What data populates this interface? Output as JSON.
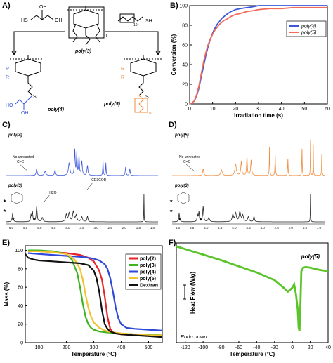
{
  "panels": {
    "A": {
      "label": "A)",
      "center_label": "poly(3)",
      "left_label": "poly(4)",
      "right_label": "poly(5)",
      "thiol_left_text": "HS",
      "thiol_right_text": "SH",
      "ho_left": "HO",
      "oh_left": "OH",
      "sub_n": "n",
      "sub_10": "10",
      "r_label": "R",
      "o_label": "O",
      "s_label": "S",
      "colors": {
        "left": "#3d57d9",
        "right": "#f08c3c",
        "black": "#000000"
      }
    },
    "B": {
      "label": "B)",
      "chart_data": {
        "type": "line",
        "xlabel": "Irradiation time (s)",
        "ylabel": "Conversion (%)",
        "xlim": [
          0,
          60
        ],
        "ylim": [
          0,
          100
        ],
        "xticks": [
          "0",
          "10",
          "20",
          "30",
          "40",
          "50",
          "60"
        ],
        "yticks": [
          "0",
          "20",
          "40",
          "60",
          "80",
          "100"
        ],
        "legend_position": "top-right",
        "series": [
          {
            "name": "poly(4)",
            "color": "#3d57d9",
            "x": [
              0,
              1,
              2,
              3,
              4,
              5,
              6,
              7,
              8,
              9,
              10,
              11,
              12,
              13,
              14,
              15,
              16,
              18,
              20,
              22,
              25,
              28,
              30,
              35,
              40,
              45,
              50,
              55,
              60
            ],
            "y": [
              0,
              1,
              3,
              8,
              16,
              27,
              38,
              49,
              58,
              66,
              72,
              77,
              81,
              84,
              87,
              89,
              91,
              94,
              96,
              97,
              98,
              99,
              100,
              100,
              100,
              100,
              100,
              100,
              100
            ]
          },
          {
            "name": "poly(5)",
            "color": "#f06b5a",
            "x": [
              0,
              1,
              2,
              3,
              4,
              5,
              6,
              7,
              8,
              9,
              10,
              11,
              12,
              13,
              14,
              15,
              16,
              18,
              20,
              22,
              25,
              28,
              30,
              35,
              40,
              45,
              50,
              55,
              60
            ],
            "y": [
              0,
              1,
              3,
              9,
              18,
              30,
              42,
              52,
              60,
              66,
              71,
              75,
              78,
              81,
              83,
              85,
              86,
              89,
              91,
              92,
              94,
              95,
              96,
              97,
              97,
              98,
              98,
              98,
              98
            ]
          }
        ]
      }
    },
    "C": {
      "label": "C)",
      "top_label": "poly(4)",
      "bottom_label": "poly(3)",
      "note_line1": "No unreacted",
      "note_line2": "C=C",
      "peak_h2o": "H2O",
      "peak_cd3cod": "CD3COD",
      "xticks": [
        "6.0",
        "5.5",
        "5.0",
        "4.5",
        "4.0",
        "3.5",
        "3.0",
        "2.5",
        "2.0",
        "1.5",
        "1.0"
      ],
      "colors": {
        "top": "#3d57d9",
        "bottom": "#222222"
      }
    },
    "D": {
      "label": "D)",
      "top_label": "poly(5)",
      "bottom_label": "poly(3)",
      "note_line1": "No unreacted",
      "note_line2": "C=C",
      "xticks": [
        "6.0",
        "5.5",
        "5.0",
        "4.5",
        "4.0",
        "3.5",
        "3.0",
        "2.5",
        "2.0",
        "1.5",
        "1.0"
      ],
      "colors": {
        "top": "#f08c3c",
        "bottom": "#222222"
      }
    },
    "E": {
      "label": "E)",
      "chart_data": {
        "type": "line",
        "xlabel": "Temperature (°C)",
        "ylabel": "Mass (%)",
        "xlim": [
          50,
          550
        ],
        "ylim": [
          0,
          105
        ],
        "xticks": [
          "100",
          "200",
          "300",
          "400",
          "500"
        ],
        "yticks": [
          "0",
          "20",
          "40",
          "60",
          "80",
          "100"
        ],
        "legend_position": "top-right",
        "series": [
          {
            "name": "poly(2)",
            "color": "#e8232a",
            "x": [
              60,
              100,
              150,
              200,
              250,
              280,
              300,
              320,
              330,
              340,
              350,
              360,
              370,
              380,
              400,
              450,
              500,
              550
            ],
            "y": [
              99,
              99,
              98,
              97,
              95,
              92,
              88,
              78,
              68,
              50,
              28,
              15,
              11,
              10,
              9,
              8,
              8,
              7
            ]
          },
          {
            "name": "poly(3)",
            "color": "#3cb521",
            "x": [
              60,
              100,
              150,
              200,
              220,
              240,
              250,
              260,
              270,
              280,
              290,
              300,
              320,
              350,
              400,
              450,
              500,
              550
            ],
            "y": [
              100,
              100,
              99,
              96,
              90,
              75,
              60,
              42,
              28,
              20,
              16,
              14,
              12,
              11,
              10,
              9,
              9,
              8
            ]
          },
          {
            "name": "poly(4)",
            "color": "#2f49d8",
            "x": [
              60,
              100,
              150,
              200,
              250,
              280,
              300,
              320,
              340,
              350,
              360,
              370,
              380,
              390,
              400,
              420,
              450,
              500,
              550
            ],
            "y": [
              97,
              96,
              95,
              94,
              93,
              92,
              91,
              89,
              85,
              80,
              70,
              55,
              38,
              26,
              20,
              16,
              15,
              14,
              13
            ]
          },
          {
            "name": "poly(5)",
            "color": "#f2c230",
            "x": [
              60,
              100,
              150,
              200,
              230,
              250,
              260,
              270,
              280,
              290,
              300,
              320,
              350,
              400,
              450,
              500,
              550
            ],
            "y": [
              99,
              99,
              98,
              96,
              90,
              80,
              68,
              52,
              38,
              28,
              22,
              16,
              12,
              10,
              9,
              8,
              8
            ]
          },
          {
            "name": "Dextran",
            "color": "#111111",
            "x": [
              50,
              60,
              80,
              100,
              150,
              200,
              250,
              280,
              300,
              310,
              320,
              330,
              340,
              350,
              360,
              380,
              400,
              450,
              500,
              550
            ],
            "y": [
              96,
              92,
              90,
              89,
              88,
              87,
              86,
              84,
              78,
              70,
              55,
              35,
              20,
              15,
              12,
              10,
              9,
              8,
              7,
              6
            ]
          }
        ]
      }
    },
    "F": {
      "label": "F)",
      "chart_data": {
        "type": "line",
        "xlabel": "Temperature (°C)",
        "ylabel": "Heat Flow (W/g)",
        "xlim": [
          -130,
          40
        ],
        "xticks": [
          "-120",
          "-100",
          "-80",
          "-60",
          "-40",
          "-20",
          "0",
          "20",
          "40"
        ],
        "series": [
          {
            "name": "",
            "color": "#5cc42b",
            "x": [
              -130,
              -120,
              -100,
              -80,
              -60,
              -40,
              -20,
              -10,
              -5,
              0,
              2,
              4,
              6,
              7,
              8,
              9,
              10,
              12,
              15,
              20,
              30,
              40
            ],
            "y": [
              10,
              9.6,
              8.8,
              8.0,
              7.1,
              6.2,
              5.1,
              4.0,
              3.4,
              4.0,
              4.5,
              3.0,
              0.8,
              -1.8,
              -2.3,
              1.5,
              6.4,
              6.9,
              7.0,
              6.9,
              6.6,
              6.4
            ]
          }
        ],
        "annotation_label": "poly(5)",
        "endo_text": "Endo down",
        "scale_label": "1"
      }
    }
  }
}
